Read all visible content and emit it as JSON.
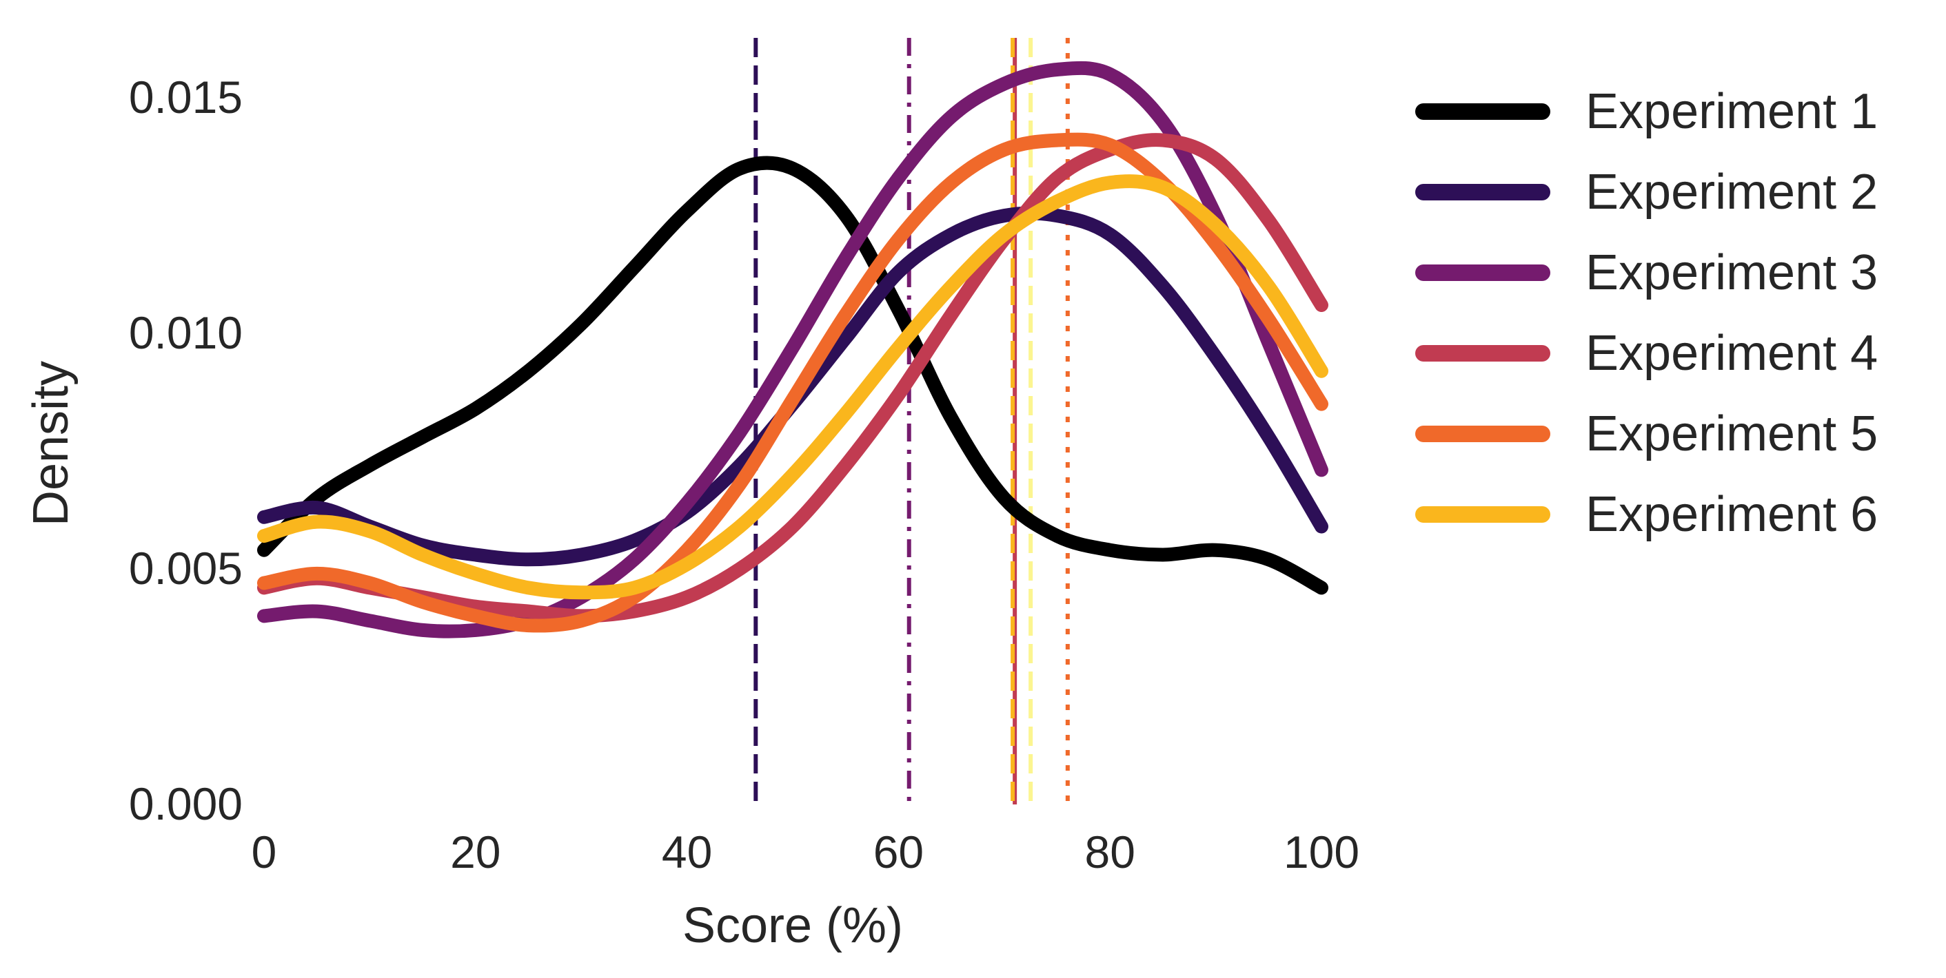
{
  "chart_data": {
    "type": "line",
    "subtype": "kde-density",
    "title": "",
    "xlabel": "Score (%)",
    "ylabel": "Density",
    "xlim": [
      0,
      100
    ],
    "ylim": [
      0,
      0.0162
    ],
    "xticks": [
      0,
      20,
      40,
      60,
      80,
      100
    ],
    "xtick_labels": [
      "0",
      "20",
      "40",
      "60",
      "80",
      "100"
    ],
    "yticks": [
      0,
      0.005,
      0.01,
      0.015
    ],
    "ytick_labels": [
      "0.000",
      "0.005",
      "0.010",
      "0.015"
    ],
    "grid": false,
    "legend_position": "right",
    "x": [
      0,
      5,
      10,
      15,
      20,
      25,
      30,
      35,
      40,
      45,
      50,
      55,
      60,
      65,
      70,
      75,
      80,
      85,
      90,
      95,
      100
    ],
    "series": [
      {
        "name": "Experiment 1",
        "color": "#000000",
        "values": [
          0.0054,
          0.0065,
          0.0072,
          0.0078,
          0.0084,
          0.0092,
          0.0102,
          0.0114,
          0.0126,
          0.0135,
          0.0135,
          0.0125,
          0.0105,
          0.0082,
          0.0065,
          0.0057,
          0.0054,
          0.0053,
          0.0054,
          0.0052,
          0.0046
        ],
        "mean_line": null
      },
      {
        "name": "Experiment 2",
        "color": "#2d0f57",
        "values": [
          0.0061,
          0.0063,
          0.0059,
          0.0055,
          0.0053,
          0.0052,
          0.0053,
          0.0056,
          0.0062,
          0.0072,
          0.0085,
          0.0099,
          0.0113,
          0.0121,
          0.0125,
          0.0125,
          0.0121,
          0.011,
          0.0095,
          0.0078,
          0.0059
        ],
        "mean_line": {
          "x": 46.5,
          "style": "dashed"
        }
      },
      {
        "name": "Experiment 3",
        "color": "#751b6e",
        "values": [
          0.004,
          0.0041,
          0.0039,
          0.0037,
          0.0037,
          0.0039,
          0.0044,
          0.0052,
          0.0064,
          0.0079,
          0.0097,
          0.0116,
          0.0133,
          0.0146,
          0.0153,
          0.0156,
          0.0155,
          0.0145,
          0.0125,
          0.0098,
          0.0071
        ],
        "mean_line": {
          "x": 61,
          "style": "dashdot"
        }
      },
      {
        "name": "Experiment 4",
        "color": "#c13b51",
        "values": [
          0.0046,
          0.0048,
          0.0046,
          0.0044,
          0.0042,
          0.0041,
          0.004,
          0.0041,
          0.0044,
          0.005,
          0.0059,
          0.0072,
          0.0087,
          0.0104,
          0.012,
          0.0133,
          0.0139,
          0.0141,
          0.0137,
          0.0124,
          0.0106
        ],
        "mean_line": {
          "x": 71,
          "style": "solid"
        }
      },
      {
        "name": "Experiment 5",
        "color": "#f0692a",
        "values": [
          0.0047,
          0.0049,
          0.0047,
          0.0043,
          0.004,
          0.0038,
          0.0039,
          0.0044,
          0.0054,
          0.0068,
          0.0086,
          0.0104,
          0.012,
          0.0132,
          0.0139,
          0.0141,
          0.014,
          0.0132,
          0.0119,
          0.0103,
          0.0085
        ],
        "mean_line": {
          "x": 76,
          "style": "dotted"
        }
      },
      {
        "name": "Experiment 6",
        "color": "#fab61d",
        "values": [
          0.0057,
          0.006,
          0.0058,
          0.0053,
          0.0049,
          0.0046,
          0.0045,
          0.0046,
          0.0051,
          0.0059,
          0.007,
          0.0083,
          0.0097,
          0.011,
          0.0121,
          0.0128,
          0.0132,
          0.0131,
          0.0123,
          0.011,
          0.0092
        ],
        "mean_line": {
          "x": 72.5,
          "style": "dashed",
          "color": "#fcf590"
        }
      }
    ],
    "extra_mean_lines": [
      {
        "x": 70.8,
        "style": "dashed",
        "color": "#fab61d"
      }
    ]
  }
}
